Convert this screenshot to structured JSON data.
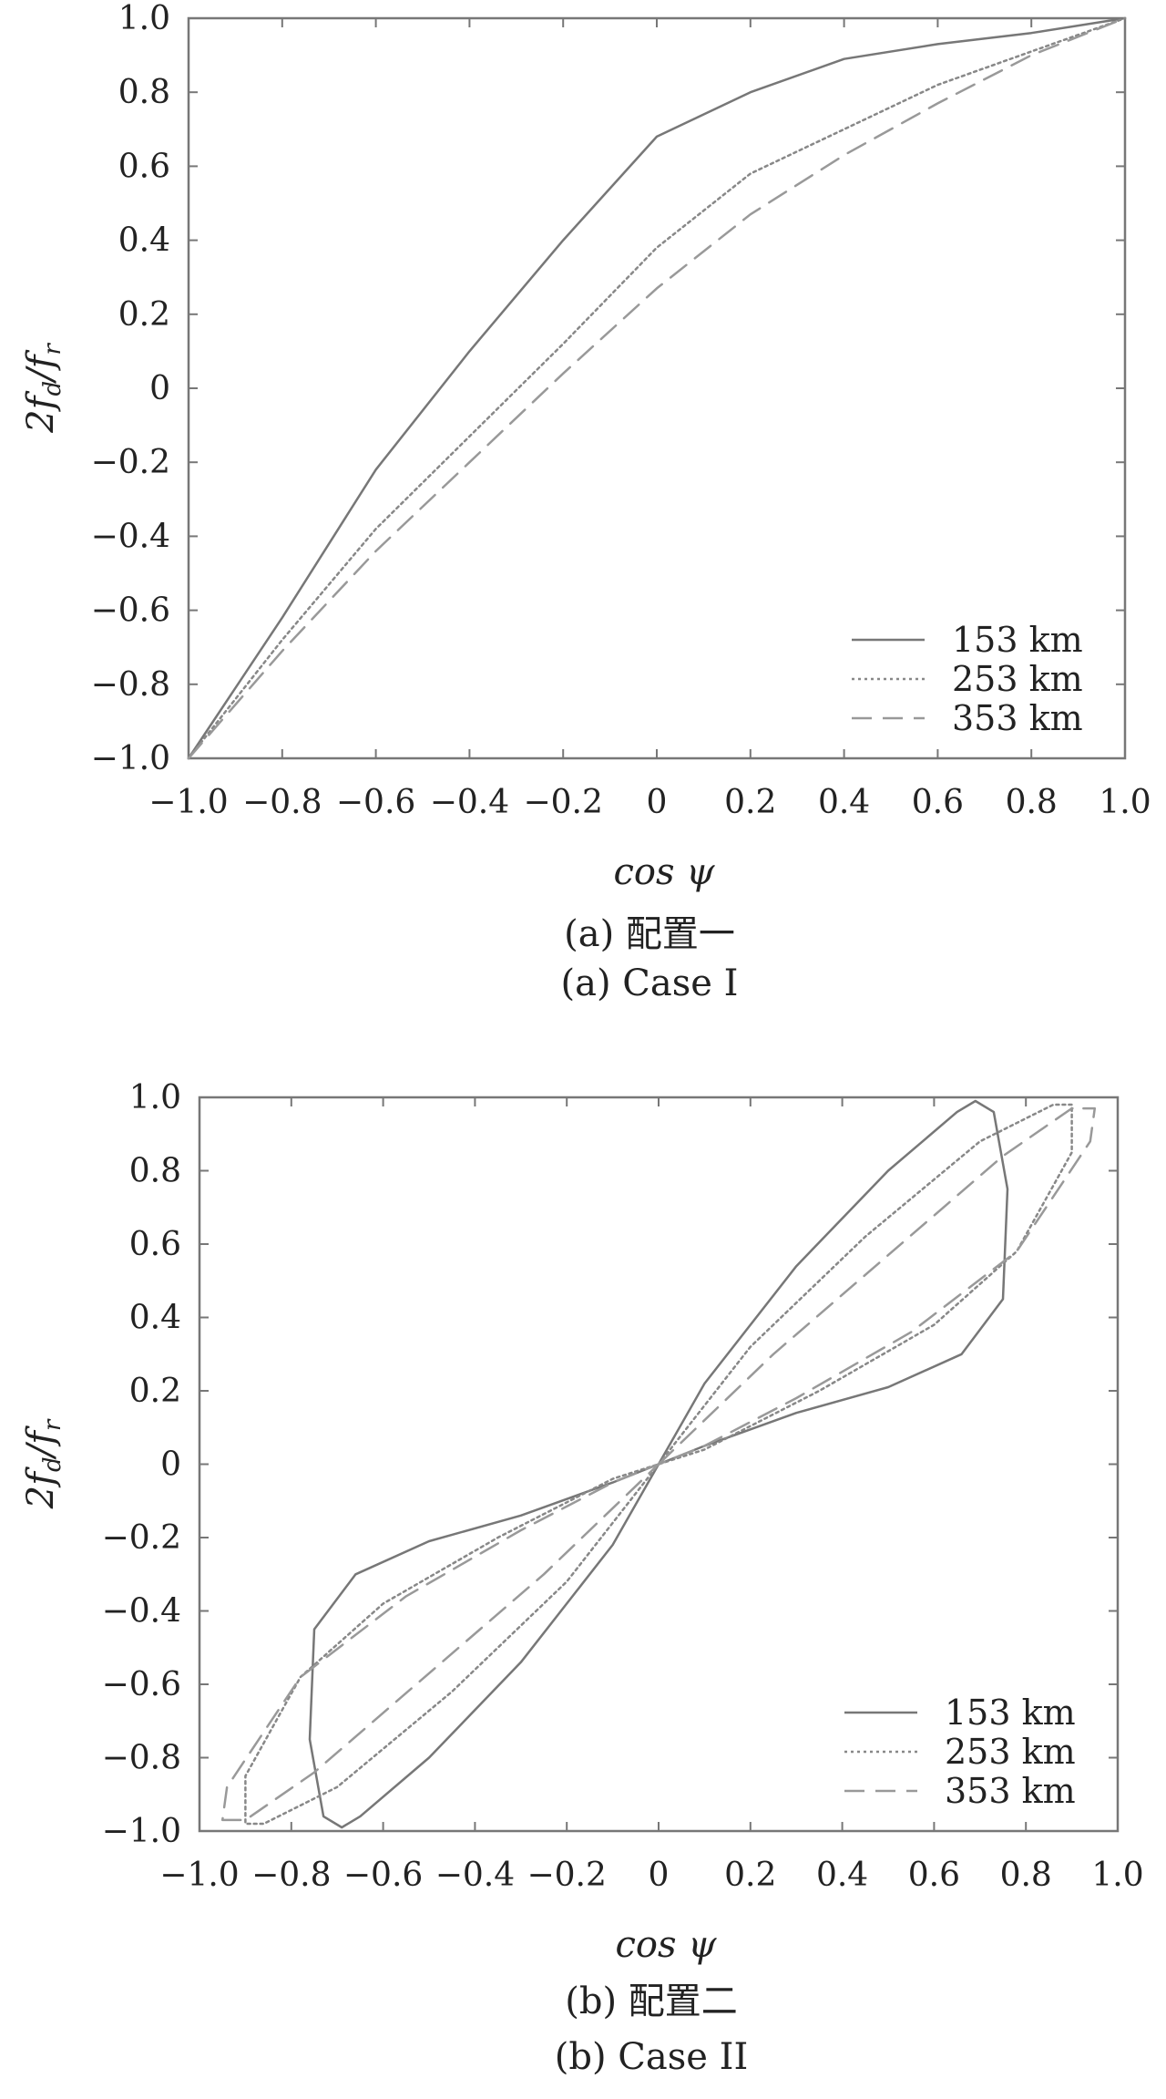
{
  "chart_data": [
    {
      "type": "line",
      "xlabel": "cos ψ",
      "ylabel": "2f_d/f_r",
      "xlim": [
        -1.0,
        1.0
      ],
      "ylim": [
        -1.0,
        1.0
      ],
      "x_ticks": [
        "−1.0",
        "−0.8",
        "−0.6",
        "−0.4",
        "−0.2",
        "0",
        "0.2",
        "0.4",
        "0.6",
        "0.8",
        "1.0"
      ],
      "y_ticks": [
        "1.0",
        "0.8",
        "0.6",
        "0.4",
        "0.2",
        "0",
        "−0.2",
        "−0.4",
        "−0.6",
        "−0.8",
        "−1.0"
      ],
      "legend_position": "bottom-right",
      "caption_cn": "(a) 配置一",
      "caption_en": "(a) Case I",
      "series": [
        {
          "name": "153 km",
          "style": "solid",
          "color": "#777777",
          "points": [
            [
              -1.0,
              -1.0
            ],
            [
              -0.8,
              -0.62
            ],
            [
              -0.6,
              -0.22
            ],
            [
              -0.4,
              0.1
            ],
            [
              -0.2,
              0.4
            ],
            [
              0.0,
              0.68
            ],
            [
              0.2,
              0.8
            ],
            [
              0.4,
              0.89
            ],
            [
              0.6,
              0.93
            ],
            [
              0.8,
              0.96
            ],
            [
              1.0,
              1.0
            ]
          ]
        },
        {
          "name": "253 km",
          "style": "dotted",
          "color": "#888888",
          "points": [
            [
              -1.0,
              -1.0
            ],
            [
              -0.8,
              -0.68
            ],
            [
              -0.6,
              -0.38
            ],
            [
              -0.4,
              -0.13
            ],
            [
              -0.2,
              0.12
            ],
            [
              0.0,
              0.38
            ],
            [
              0.2,
              0.58
            ],
            [
              0.4,
              0.7
            ],
            [
              0.6,
              0.82
            ],
            [
              0.8,
              0.91
            ],
            [
              1.0,
              1.0
            ]
          ]
        },
        {
          "name": "353 km",
          "style": "dashed",
          "color": "#999999",
          "points": [
            [
              -1.0,
              -1.0
            ],
            [
              -0.8,
              -0.71
            ],
            [
              -0.6,
              -0.44
            ],
            [
              -0.4,
              -0.2
            ],
            [
              -0.2,
              0.04
            ],
            [
              0.0,
              0.27
            ],
            [
              0.2,
              0.47
            ],
            [
              0.4,
              0.63
            ],
            [
              0.6,
              0.77
            ],
            [
              0.8,
              0.9
            ],
            [
              1.0,
              1.0
            ]
          ]
        }
      ]
    },
    {
      "type": "line",
      "xlabel": "cos ψ",
      "ylabel": "2f_d/f_r",
      "xlim": [
        -1.0,
        1.0
      ],
      "ylim": [
        -1.0,
        1.0
      ],
      "x_ticks": [
        "−1.0",
        "−0.8",
        "−0.6",
        "−0.4",
        "−0.2",
        "0",
        "0.2",
        "0.4",
        "0.6",
        "0.8",
        "1.0"
      ],
      "y_ticks": [
        "1.0",
        "0.8",
        "0.6",
        "0.4",
        "0.2",
        "0",
        "−0.2",
        "−0.4",
        "−0.6",
        "−0.8",
        "−1.0"
      ],
      "legend_position": "bottom-right",
      "caption_cn": "(b) 配置二",
      "caption_en": "(b) Case II",
      "series": [
        {
          "name": "153 km",
          "style": "solid",
          "color": "#777777",
          "points": [
            [
              0.0,
              0.0
            ],
            [
              0.1,
              0.22
            ],
            [
              0.3,
              0.54
            ],
            [
              0.5,
              0.8
            ],
            [
              0.65,
              0.96
            ],
            [
              0.69,
              0.99
            ],
            [
              0.73,
              0.96
            ],
            [
              0.76,
              0.75
            ],
            [
              0.75,
              0.45
            ],
            [
              0.66,
              0.3
            ],
            [
              0.5,
              0.21
            ],
            [
              0.3,
              0.14
            ],
            [
              0.1,
              0.05
            ],
            [
              0.0,
              0.0
            ],
            [
              -0.1,
              -0.05
            ],
            [
              -0.3,
              -0.14
            ],
            [
              -0.5,
              -0.21
            ],
            [
              -0.66,
              -0.3
            ],
            [
              -0.75,
              -0.45
            ],
            [
              -0.76,
              -0.75
            ],
            [
              -0.73,
              -0.96
            ],
            [
              -0.69,
              -0.99
            ],
            [
              -0.65,
              -0.96
            ],
            [
              -0.5,
              -0.8
            ],
            [
              -0.3,
              -0.54
            ],
            [
              -0.1,
              -0.22
            ],
            [
              0.0,
              0.0
            ]
          ]
        },
        {
          "name": "253 km",
          "style": "dotted",
          "color": "#888888",
          "points": [
            [
              0.0,
              0.0
            ],
            [
              0.2,
              0.32
            ],
            [
              0.45,
              0.62
            ],
            [
              0.7,
              0.88
            ],
            [
              0.86,
              0.98
            ],
            [
              0.9,
              0.98
            ],
            [
              0.9,
              0.85
            ],
            [
              0.78,
              0.58
            ],
            [
              0.6,
              0.38
            ],
            [
              0.35,
              0.2
            ],
            [
              0.1,
              0.04
            ],
            [
              0.0,
              0.0
            ],
            [
              -0.1,
              -0.04
            ],
            [
              -0.35,
              -0.2
            ],
            [
              -0.6,
              -0.38
            ],
            [
              -0.78,
              -0.58
            ],
            [
              -0.9,
              -0.85
            ],
            [
              -0.9,
              -0.98
            ],
            [
              -0.86,
              -0.98
            ],
            [
              -0.7,
              -0.88
            ],
            [
              -0.45,
              -0.62
            ],
            [
              -0.2,
              -0.32
            ],
            [
              0.0,
              0.0
            ]
          ]
        },
        {
          "name": "353 km",
          "style": "dashed",
          "color": "#999999",
          "points": [
            [
              0.0,
              0.0
            ],
            [
              0.25,
              0.3
            ],
            [
              0.5,
              0.57
            ],
            [
              0.75,
              0.84
            ],
            [
              0.9,
              0.97
            ],
            [
              0.95,
              0.97
            ],
            [
              0.94,
              0.88
            ],
            [
              0.78,
              0.58
            ],
            [
              0.55,
              0.36
            ],
            [
              0.3,
              0.18
            ],
            [
              0.1,
              0.05
            ],
            [
              0.0,
              0.0
            ],
            [
              -0.1,
              -0.05
            ],
            [
              -0.3,
              -0.18
            ],
            [
              -0.55,
              -0.36
            ],
            [
              -0.78,
              -0.58
            ],
            [
              -0.94,
              -0.88
            ],
            [
              -0.95,
              -0.97
            ],
            [
              -0.9,
              -0.97
            ],
            [
              -0.75,
              -0.84
            ],
            [
              -0.5,
              -0.57
            ],
            [
              -0.25,
              -0.3
            ],
            [
              0.0,
              0.0
            ]
          ]
        }
      ]
    }
  ]
}
